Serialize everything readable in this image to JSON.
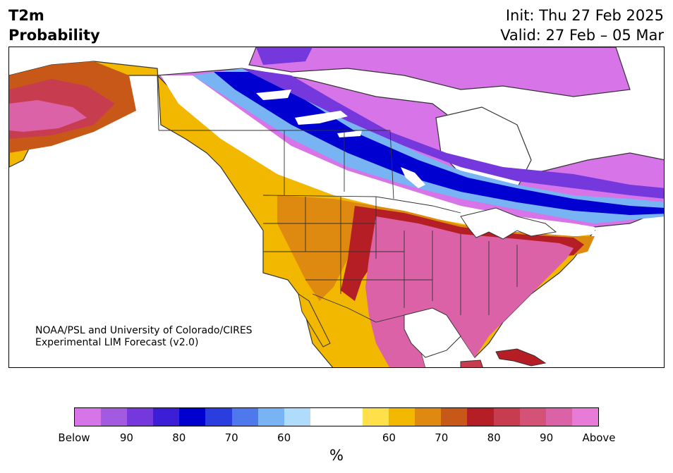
{
  "header": {
    "title_line1": "T2m",
    "title_line2": "Probability",
    "init_text": "Init: Thu 27 Feb 2025",
    "valid_text": "Valid: 27 Feb – 05 Mar"
  },
  "credit": {
    "line1": "NOAA/PSL and University of Colorado/CIRES",
    "line2": "Experimental LIM Forecast (v2.0)"
  },
  "colorbar": {
    "colors": [
      "#d674e8",
      "#a35ae0",
      "#7438dc",
      "#3c1ed6",
      "#0000d0",
      "#2a3ee0",
      "#4f78ec",
      "#78b4f4",
      "#b0dcfc",
      "#ffffff",
      "#ffffff",
      "#fee14a",
      "#f2b800",
      "#de8a10",
      "#c85818",
      "#b41e24",
      "#c83c50",
      "#d45278",
      "#dc62a8",
      "#e87ad8"
    ],
    "tick_labels": [
      "Below",
      "90",
      "80",
      "70",
      "60",
      "60",
      "70",
      "80",
      "90",
      "Above"
    ],
    "unit": "%"
  },
  "map_colors": {
    "below_strong": "#d674e8",
    "below_mid": "#7438dc",
    "below_core": "#0000d0",
    "below_light": "#78b4f4",
    "near_normal": "#ffffff",
    "above_light": "#fee14a",
    "above_mid": "#f2b800",
    "above_orange": "#de8a10",
    "above_red": "#b41e24",
    "above_strong": "#dc62a8"
  }
}
